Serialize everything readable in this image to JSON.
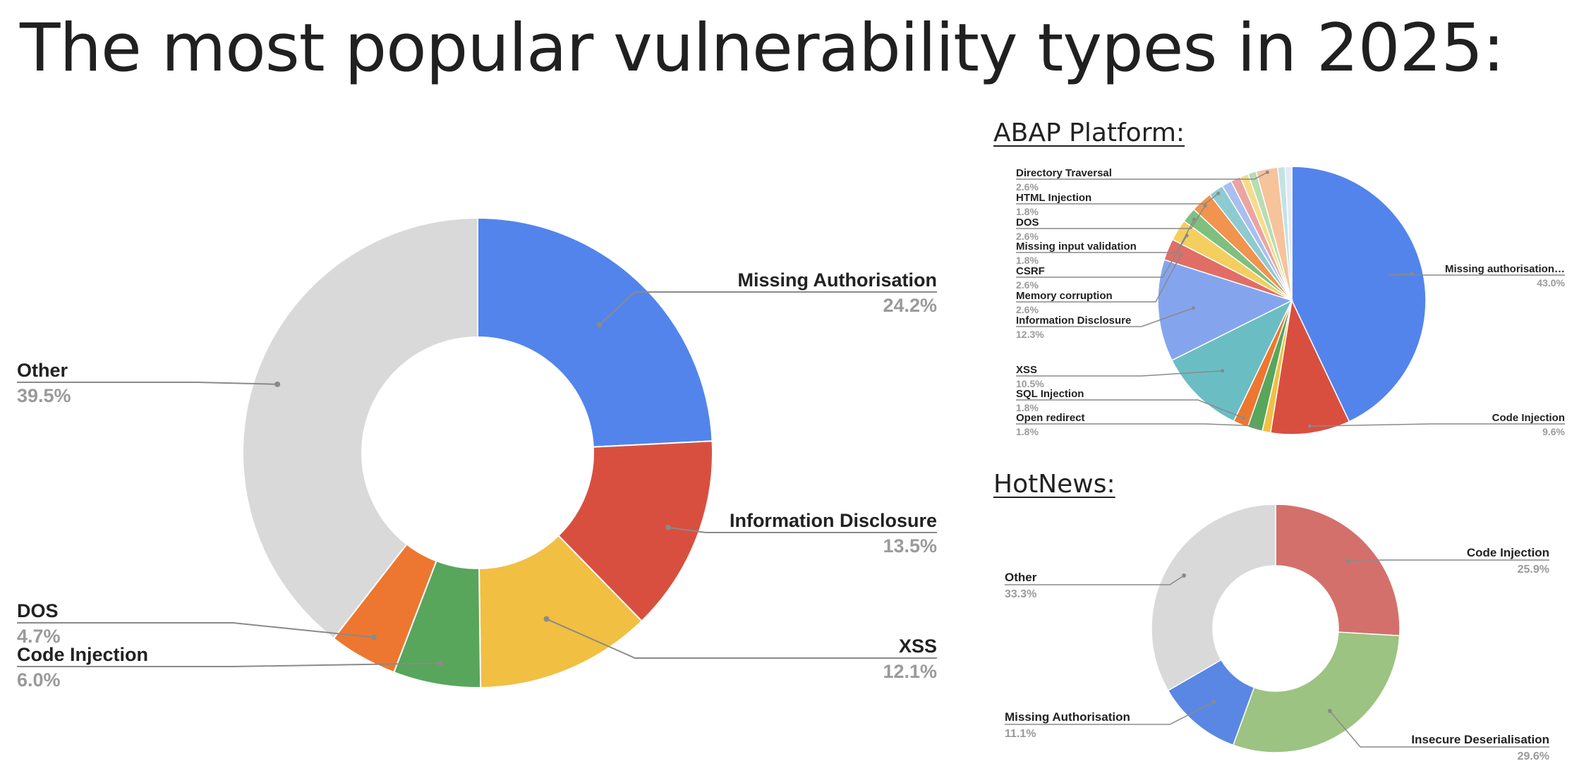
{
  "title": "The most popular vulnerability types in 2025:",
  "abap_heading": "ABAP Platform:",
  "hotnews_heading": "HotNews:",
  "chart_data": [
    {
      "type": "pie",
      "donut": true,
      "title": "",
      "slices": [
        {
          "label": "Missing Authorisation",
          "pct": "24.2%",
          "value": 24.2,
          "color": "#5384ec"
        },
        {
          "label": "Information Disclosure",
          "pct": "13.5%",
          "value": 13.5,
          "color": "#d94f3f"
        },
        {
          "label": "XSS",
          "pct": "12.1%",
          "value": 12.1,
          "color": "#f1bf42"
        },
        {
          "label": "Code Injection",
          "pct": "6.0%",
          "value": 6.0,
          "color": "#58a55c"
        },
        {
          "label": "DOS",
          "pct": "4.7%",
          "value": 4.7,
          "color": "#ed7730"
        },
        {
          "label": "Other",
          "pct": "39.5%",
          "value": 39.5,
          "color": "#d9d9d9"
        }
      ]
    },
    {
      "type": "pie",
      "donut": false,
      "title": "ABAP Platform:",
      "slices": [
        {
          "label": "Missing authorisation…",
          "pct": "43.0%",
          "value": 43.0,
          "color": "#5384ec"
        },
        {
          "label": "Code Injection",
          "pct": "9.6%",
          "value": 9.6,
          "color": "#d94f3f"
        },
        {
          "label": "",
          "pct": "",
          "value": 1.0,
          "color": "#f1bf42"
        },
        {
          "label": "Open redirect",
          "pct": "1.8%",
          "value": 1.8,
          "color": "#58a55c"
        },
        {
          "label": "SQL Injection",
          "pct": "1.8%",
          "value": 1.8,
          "color": "#ed7730"
        },
        {
          "label": "XSS",
          "pct": "10.5%",
          "value": 10.5,
          "color": "#6bbdc4"
        },
        {
          "label": "Information Disclosure",
          "pct": "12.3%",
          "value": 12.3,
          "color": "#84a5ee"
        },
        {
          "label": "Memory corruption",
          "pct": "2.6%",
          "value": 2.6,
          "color": "#e06e66"
        },
        {
          "label": "CSRF",
          "pct": "2.6%",
          "value": 2.6,
          "color": "#f4cf5f"
        },
        {
          "label": "Missing input validation",
          "pct": "1.8%",
          "value": 1.8,
          "color": "#7fbf7f"
        },
        {
          "label": "DOS",
          "pct": "2.6%",
          "value": 2.6,
          "color": "#f0944f"
        },
        {
          "label": "HTML Injection",
          "pct": "1.8%",
          "value": 1.8,
          "color": "#8dcbd1"
        },
        {
          "label": "",
          "pct": "",
          "value": 1.2,
          "color": "#aabfef"
        },
        {
          "label": "",
          "pct": "",
          "value": 1.2,
          "color": "#eaa5a0"
        },
        {
          "label": "",
          "pct": "",
          "value": 1.0,
          "color": "#f6dc8a"
        },
        {
          "label": "",
          "pct": "",
          "value": 1.0,
          "color": "#b8dcb4"
        },
        {
          "label": "Directory Traversal",
          "pct": "2.6%",
          "value": 2.6,
          "color": "#f6c39a"
        },
        {
          "label": "",
          "pct": "",
          "value": 0.9,
          "color": "#c2e3e6"
        },
        {
          "label": "",
          "pct": "",
          "value": 0.8,
          "color": "#e3e9f7"
        }
      ]
    },
    {
      "type": "pie",
      "donut": true,
      "title": "HotNews:",
      "slices": [
        {
          "label": "Code Injection",
          "pct": "25.9%",
          "value": 25.9,
          "color": "#d4706b"
        },
        {
          "label": "Insecure Deserialisation",
          "pct": "29.6%",
          "value": 29.6,
          "color": "#9cc382"
        },
        {
          "label": "Missing Authorisation",
          "pct": "11.1%",
          "value": 11.1,
          "color": "#5a87e3"
        },
        {
          "label": "Other",
          "pct": "33.3%",
          "value": 33.3,
          "color": "#d9d9d9"
        }
      ]
    }
  ]
}
